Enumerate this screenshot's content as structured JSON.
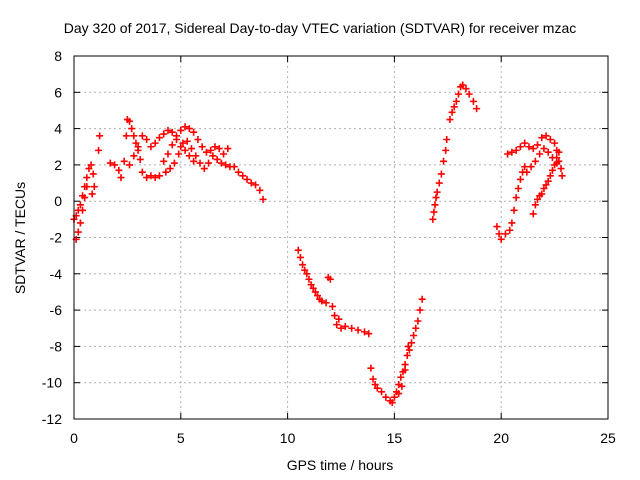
{
  "chart_data": {
    "type": "scatter",
    "title": "Day 320 of 2017, Sidereal Day-to-day VTEC variation (SDTVAR) for receiver mzac",
    "xlabel": "GPS time / hours",
    "ylabel": "SDTVAR / TECUs",
    "xlim": [
      0,
      25
    ],
    "ylim": [
      -12,
      8
    ],
    "x_ticks": [
      "0",
      "5",
      "10",
      "15",
      "20",
      "25"
    ],
    "y_ticks": [
      "8",
      "6",
      "4",
      "2",
      "0",
      "-2",
      "-4",
      "-6",
      "-8",
      "-10",
      "-12"
    ],
    "grid": true,
    "marker": "+",
    "color": "#ff0000",
    "series": [
      {
        "points": [
          [
            0.0,
            -1.0
          ],
          [
            0.1,
            -2.1
          ],
          [
            0.2,
            -1.7
          ],
          [
            0.3,
            -1.2
          ],
          [
            0.4,
            -0.5
          ],
          [
            0.5,
            0.2
          ],
          [
            0.6,
            0.8
          ],
          [
            0.1,
            -0.8
          ],
          [
            0.2,
            -0.5
          ],
          [
            0.3,
            -0.2
          ],
          [
            0.4,
            0.3
          ],
          [
            0.5,
            0.8
          ],
          [
            0.6,
            1.3
          ],
          [
            0.7,
            1.8
          ],
          [
            0.8,
            2.0
          ],
          [
            0.9,
            1.5
          ],
          [
            0.95,
            0.8
          ],
          [
            0.85,
            0.4
          ],
          [
            1.2,
            3.6
          ],
          [
            1.15,
            2.8
          ],
          [
            1.7,
            2.1
          ],
          [
            1.9,
            2.0
          ],
          [
            2.1,
            1.7
          ],
          [
            2.2,
            1.3
          ],
          [
            2.35,
            2.2
          ],
          [
            2.45,
            3.6
          ],
          [
            2.5,
            4.5
          ],
          [
            2.6,
            4.4
          ],
          [
            2.7,
            4.0
          ],
          [
            2.8,
            3.6
          ],
          [
            2.9,
            3.2
          ],
          [
            3.0,
            2.8
          ],
          [
            3.1,
            2.3
          ],
          [
            3.2,
            1.6
          ],
          [
            3.4,
            1.3
          ],
          [
            3.6,
            1.4
          ],
          [
            3.8,
            1.3
          ],
          [
            4.0,
            1.4
          ],
          [
            2.6,
            2.0
          ],
          [
            2.8,
            2.5
          ],
          [
            3.0,
            3.0
          ],
          [
            3.2,
            3.6
          ],
          [
            3.4,
            3.4
          ],
          [
            3.6,
            3.0
          ],
          [
            3.8,
            3.2
          ],
          [
            4.0,
            3.5
          ],
          [
            4.2,
            3.7
          ],
          [
            4.4,
            3.9
          ],
          [
            4.6,
            3.8
          ],
          [
            4.8,
            3.4
          ],
          [
            5.0,
            3.0
          ],
          [
            5.2,
            2.8
          ],
          [
            5.4,
            2.5
          ],
          [
            5.6,
            2.2
          ],
          [
            4.2,
            2.2
          ],
          [
            4.4,
            2.6
          ],
          [
            4.6,
            3.1
          ],
          [
            4.8,
            3.6
          ],
          [
            5.0,
            3.9
          ],
          [
            5.2,
            4.1
          ],
          [
            5.4,
            4.0
          ],
          [
            5.6,
            3.8
          ],
          [
            5.8,
            3.4
          ],
          [
            6.0,
            3.0
          ],
          [
            6.2,
            2.7
          ],
          [
            6.4,
            2.8
          ],
          [
            6.6,
            3.0
          ],
          [
            6.8,
            2.9
          ],
          [
            7.0,
            2.6
          ],
          [
            7.2,
            2.9
          ],
          [
            4.3,
            1.6
          ],
          [
            4.5,
            1.8
          ],
          [
            4.7,
            2.1
          ],
          [
            4.9,
            2.6
          ],
          [
            5.1,
            3.2
          ],
          [
            5.3,
            3.3
          ],
          [
            5.5,
            2.9
          ],
          [
            5.7,
            2.5
          ],
          [
            5.9,
            2.1
          ],
          [
            6.1,
            1.8
          ],
          [
            6.3,
            2.1
          ],
          [
            6.5,
            2.5
          ],
          [
            6.7,
            2.3
          ],
          [
            6.9,
            2.1
          ],
          [
            7.1,
            2.0
          ],
          [
            7.3,
            1.9
          ],
          [
            7.5,
            1.9
          ],
          [
            7.7,
            1.6
          ],
          [
            7.9,
            1.4
          ],
          [
            8.1,
            1.2
          ],
          [
            8.3,
            1.0
          ],
          [
            8.5,
            0.9
          ],
          [
            8.7,
            0.6
          ],
          [
            8.85,
            0.1
          ],
          [
            10.5,
            -2.7
          ],
          [
            10.6,
            -3.1
          ],
          [
            10.7,
            -3.5
          ],
          [
            10.8,
            -3.8
          ],
          [
            10.9,
            -4.0
          ],
          [
            11.0,
            -4.3
          ],
          [
            11.1,
            -4.6
          ],
          [
            11.2,
            -4.8
          ],
          [
            11.3,
            -5.0
          ],
          [
            11.4,
            -5.2
          ],
          [
            11.5,
            -5.4
          ],
          [
            11.6,
            -5.5
          ],
          [
            11.8,
            -5.6
          ],
          [
            11.9,
            -4.2
          ],
          [
            12.0,
            -4.3
          ],
          [
            12.1,
            -5.8
          ],
          [
            12.2,
            -6.3
          ],
          [
            12.3,
            -6.8
          ],
          [
            12.4,
            -6.5
          ],
          [
            12.5,
            -7.0
          ],
          [
            12.7,
            -6.9
          ],
          [
            13.0,
            -7.0
          ],
          [
            13.3,
            -7.1
          ],
          [
            13.6,
            -7.2
          ],
          [
            13.8,
            -7.3
          ],
          [
            13.9,
            -9.2
          ],
          [
            14.0,
            -9.8
          ],
          [
            14.1,
            -10.1
          ],
          [
            14.2,
            -10.3
          ],
          [
            14.4,
            -10.5
          ],
          [
            14.6,
            -10.8
          ],
          [
            14.8,
            -11.0
          ],
          [
            14.9,
            -11.1
          ],
          [
            15.0,
            -10.8
          ],
          [
            15.1,
            -10.5
          ],
          [
            15.2,
            -10.1
          ],
          [
            15.3,
            -9.7
          ],
          [
            15.4,
            -9.4
          ],
          [
            15.5,
            -9.0
          ],
          [
            15.6,
            -8.5
          ],
          [
            15.7,
            -8.2
          ],
          [
            15.2,
            -10.6
          ],
          [
            15.35,
            -10.2
          ],
          [
            15.5,
            -9.3
          ],
          [
            15.65,
            -8.0
          ],
          [
            15.8,
            -7.8
          ],
          [
            15.9,
            -7.4
          ],
          [
            16.0,
            -7.0
          ],
          [
            16.1,
            -6.6
          ],
          [
            16.2,
            -6.0
          ],
          [
            16.3,
            -5.4
          ],
          [
            16.8,
            -1.0
          ],
          [
            16.85,
            -0.6
          ],
          [
            16.9,
            -0.2
          ],
          [
            16.95,
            0.2
          ],
          [
            17.0,
            0.5
          ],
          [
            17.1,
            1.0
          ],
          [
            17.2,
            1.5
          ],
          [
            17.3,
            2.2
          ],
          [
            17.4,
            2.8
          ],
          [
            17.45,
            3.4
          ],
          [
            17.6,
            4.5
          ],
          [
            17.7,
            4.9
          ],
          [
            17.8,
            5.2
          ],
          [
            17.9,
            5.5
          ],
          [
            18.0,
            5.9
          ],
          [
            18.1,
            6.3
          ],
          [
            18.2,
            6.4
          ],
          [
            18.35,
            6.2
          ],
          [
            18.5,
            5.9
          ],
          [
            18.7,
            5.5
          ],
          [
            18.85,
            5.1
          ],
          [
            19.8,
            -1.4
          ],
          [
            19.9,
            -1.8
          ],
          [
            20.0,
            -2.1
          ],
          [
            20.2,
            -1.8
          ],
          [
            20.4,
            -1.6
          ],
          [
            20.5,
            -1.2
          ],
          [
            20.6,
            -0.5
          ],
          [
            20.7,
            0.2
          ],
          [
            20.8,
            0.7
          ],
          [
            20.9,
            1.2
          ],
          [
            21.0,
            1.6
          ],
          [
            21.1,
            1.9
          ],
          [
            21.2,
            1.6
          ],
          [
            21.4,
            1.9
          ],
          [
            21.6,
            2.2
          ],
          [
            21.8,
            2.6
          ],
          [
            22.0,
            2.9
          ],
          [
            22.2,
            2.7
          ],
          [
            22.4,
            2.4
          ],
          [
            22.6,
            2.1
          ],
          [
            21.5,
            -0.7
          ],
          [
            21.6,
            -0.2
          ],
          [
            21.7,
            0.1
          ],
          [
            21.8,
            0.3
          ],
          [
            21.9,
            0.4
          ],
          [
            22.0,
            0.7
          ],
          [
            22.1,
            0.9
          ],
          [
            22.2,
            1.1
          ],
          [
            22.3,
            1.4
          ],
          [
            22.4,
            1.7
          ],
          [
            22.5,
            2.0
          ],
          [
            22.6,
            2.4
          ],
          [
            22.7,
            2.7
          ],
          [
            20.3,
            2.6
          ],
          [
            20.5,
            2.7
          ],
          [
            20.7,
            2.8
          ],
          [
            20.9,
            3.0
          ],
          [
            21.1,
            3.2
          ],
          [
            21.3,
            3.0
          ],
          [
            21.5,
            2.9
          ],
          [
            21.7,
            3.1
          ],
          [
            21.9,
            3.5
          ],
          [
            22.1,
            3.6
          ],
          [
            22.3,
            3.4
          ],
          [
            22.5,
            3.2
          ],
          [
            22.6,
            2.8
          ],
          [
            22.7,
            2.2
          ],
          [
            22.8,
            1.8
          ],
          [
            22.85,
            1.4
          ]
        ]
      }
    ]
  }
}
